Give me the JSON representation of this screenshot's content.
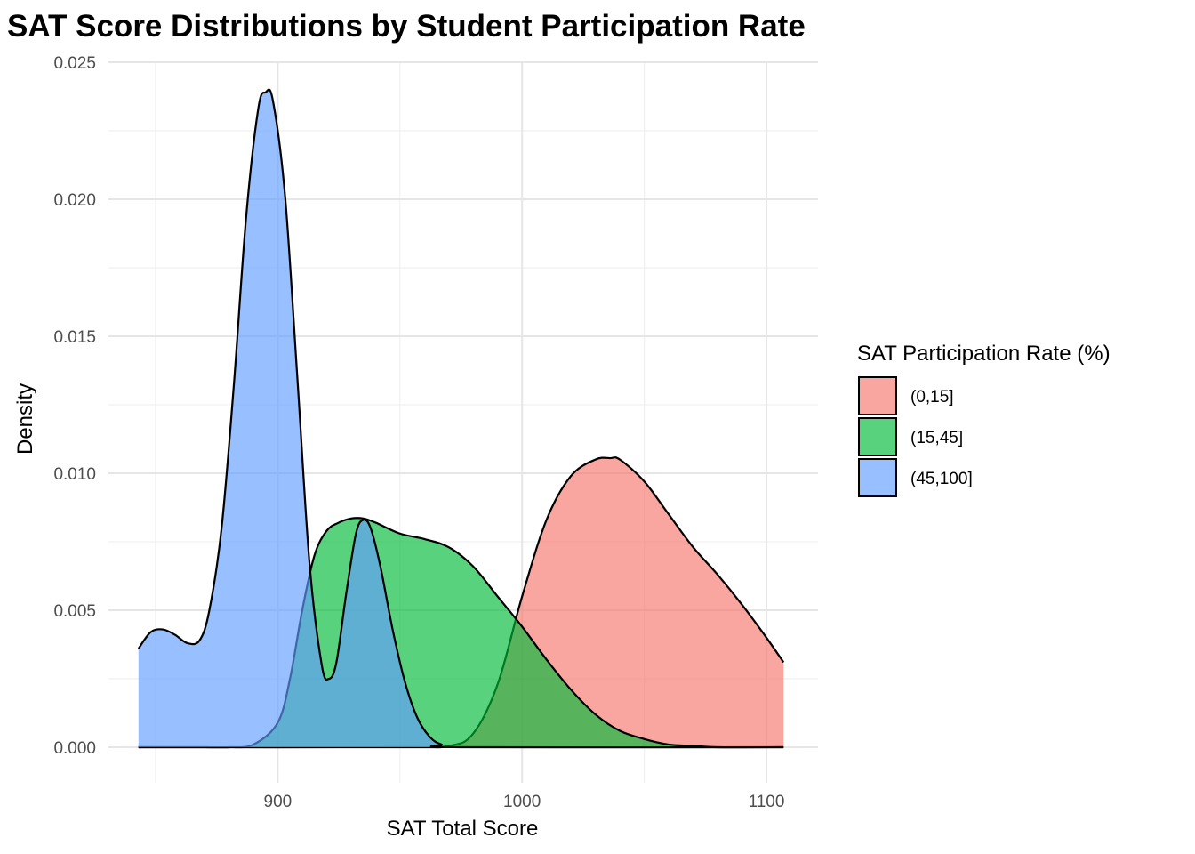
{
  "chart_data": {
    "type": "area",
    "subtype": "density",
    "title": "SAT Score Distributions by Student Participation Rate",
    "xlabel": "SAT Total Score",
    "ylabel": "Density",
    "xlim": [
      843,
      1107
    ],
    "ylim": [
      0,
      0.025
    ],
    "x_ticks": [
      900,
      1000,
      1100
    ],
    "x_tick_labels": [
      "900",
      "1000",
      "1100"
    ],
    "y_ticks": [
      0,
      0.005,
      0.01,
      0.015,
      0.02,
      0.025
    ],
    "y_tick_labels": [
      "0.000",
      "0.005",
      "0.010",
      "0.015",
      "0.020",
      "0.025"
    ],
    "grid": true,
    "legend": {
      "title": "SAT Participation Rate (%)",
      "placement": "right"
    },
    "series": [
      {
        "name": "(0,15]",
        "color": "#F8766D",
        "points": [
          [
            843,
            0
          ],
          [
            950,
            0
          ],
          [
            970,
            5e-05
          ],
          [
            980,
            0.0005
          ],
          [
            990,
            0.0023
          ],
          [
            1000,
            0.0055
          ],
          [
            1010,
            0.0083
          ],
          [
            1020,
            0.0099
          ],
          [
            1030,
            0.0105
          ],
          [
            1036,
            0.01055
          ],
          [
            1040,
            0.0105
          ],
          [
            1050,
            0.0097
          ],
          [
            1060,
            0.0085
          ],
          [
            1070,
            0.0073
          ],
          [
            1080,
            0.0063
          ],
          [
            1090,
            0.0052
          ],
          [
            1100,
            0.004
          ],
          [
            1107,
            0.0031
          ]
        ]
      },
      {
        "name": "(15,45]",
        "color": "#00BA38",
        "points": [
          [
            843,
            0
          ],
          [
            850,
            0
          ],
          [
            860,
            0
          ],
          [
            870,
            0
          ],
          [
            880,
            0
          ],
          [
            890,
            0.0001
          ],
          [
            900,
            0.0009
          ],
          [
            905,
            0.0025
          ],
          [
            910,
            0.005
          ],
          [
            915,
            0.007
          ],
          [
            920,
            0.0079
          ],
          [
            925,
            0.0082
          ],
          [
            930,
            0.00835
          ],
          [
            935,
            0.00835
          ],
          [
            940,
            0.0082
          ],
          [
            950,
            0.0078
          ],
          [
            960,
            0.0076
          ],
          [
            970,
            0.0073
          ],
          [
            980,
            0.0066
          ],
          [
            990,
            0.0055
          ],
          [
            1000,
            0.0044
          ],
          [
            1010,
            0.0032
          ],
          [
            1020,
            0.0021
          ],
          [
            1030,
            0.0012
          ],
          [
            1040,
            0.0006
          ],
          [
            1050,
            0.0003
          ],
          [
            1060,
            0.0001
          ],
          [
            1070,
            5e-05
          ],
          [
            1080,
            0
          ],
          [
            1107,
            0
          ]
        ]
      },
      {
        "name": "(45,100]",
        "color": "#619CFF",
        "points": [
          [
            843,
            0.0036
          ],
          [
            848,
            0.0042
          ],
          [
            853,
            0.0043
          ],
          [
            858,
            0.0041
          ],
          [
            863,
            0.0038
          ],
          [
            868,
            0.0039
          ],
          [
            872,
            0.005
          ],
          [
            877,
            0.008
          ],
          [
            882,
            0.0132
          ],
          [
            887,
            0.0193
          ],
          [
            892,
            0.0233
          ],
          [
            895,
            0.0239
          ],
          [
            898,
            0.0236
          ],
          [
            903,
            0.0201
          ],
          [
            908,
            0.0135
          ],
          [
            913,
            0.0067
          ],
          [
            918,
            0.003
          ],
          [
            921,
            0.0025
          ],
          [
            924,
            0.0031
          ],
          [
            928,
            0.0056
          ],
          [
            932,
            0.0078
          ],
          [
            935,
            0.0083
          ],
          [
            938,
            0.008
          ],
          [
            942,
            0.0066
          ],
          [
            947,
            0.0043
          ],
          [
            952,
            0.0024
          ],
          [
            957,
            0.0011
          ],
          [
            962,
            0.0004
          ],
          [
            967,
            0.0001
          ],
          [
            975,
            0
          ],
          [
            1107,
            0
          ]
        ]
      }
    ]
  }
}
